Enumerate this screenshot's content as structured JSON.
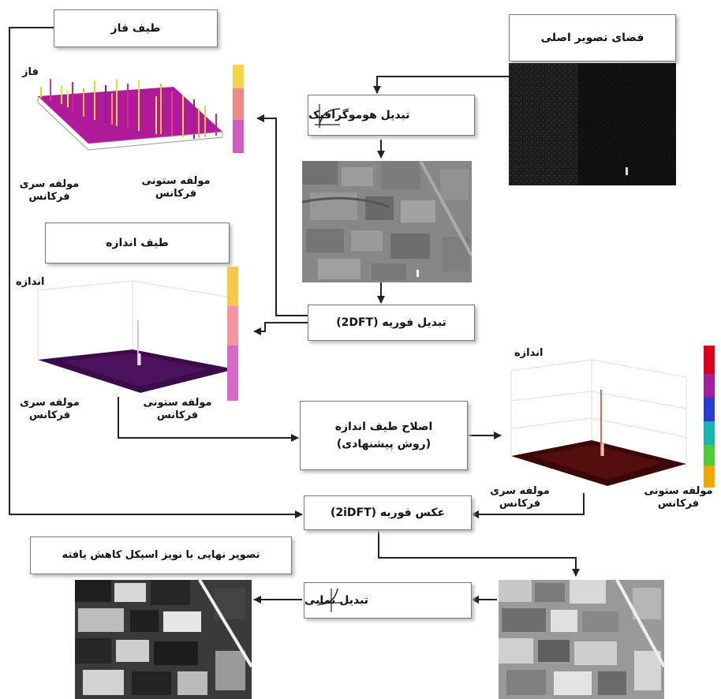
{
  "boxes": {
    "original_space": "فضای تصویر اصلی",
    "phase_spectrum": "طیف فاز",
    "homographic": "تبدیل هوموگرافیک",
    "magnitude_spectrum": "طیف اندازه",
    "fourier": "تبدیل فوریه (2DFT)",
    "correction_line1": "اصلاح طیف اندازه",
    "correction_line2": "(روش پیشنهادی)",
    "inverse_fourier": "عکس فوریه (2iDFT)",
    "final_image": "تصویر نهایی با نویز اسپکل کاهش یافته",
    "exponential": "تبدیل نمایی"
  },
  "labels": {
    "phase_axis": "فاز",
    "magnitude_axis": "اندازه",
    "row_freq_line1": "مولفه سری",
    "row_freq_line2": "فرکانس",
    "col_freq_line1": "مولفه ستونی",
    "col_freq_line2": "فرکانس"
  },
  "colors": {
    "arrow": "#222222",
    "box_border": "#777777",
    "shadow": "#bdbdbd"
  },
  "icons": {
    "homographic": "log-curve-icon",
    "exponential": "exp-curve-icon"
  }
}
